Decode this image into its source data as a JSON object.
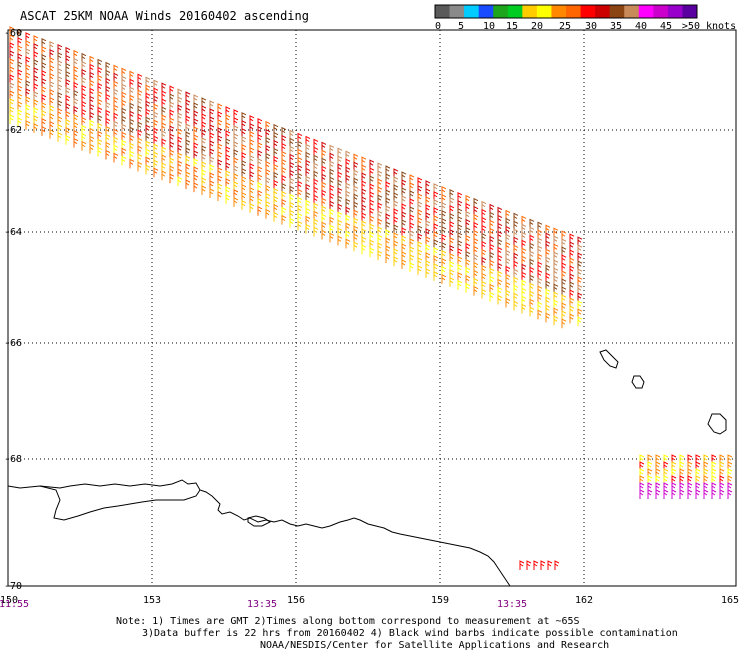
{
  "title": "ASCAT 25KM NOAA Winds 20160402 ascending",
  "color_scale": {
    "colors": [
      "#5a5a5a",
      "#8a8a8a",
      "#00ccff",
      "#1a4cff",
      "#1da51d",
      "#00cc22",
      "#ffcc00",
      "#ffff00",
      "#ff8800",
      "#ff6600",
      "#ff0000",
      "#cc0000",
      "#8b4513",
      "#c98a5a",
      "#ff00ff",
      "#cc00cc",
      "#9900cc",
      "#5a00a0"
    ],
    "labels": [
      "0",
      "5",
      "10",
      "15",
      "20",
      "25",
      "30",
      "35",
      "40",
      "45",
      ">50 knots"
    ]
  },
  "axes": {
    "lat_labels": [
      "-60",
      "-62",
      "-64",
      "-66",
      "-68",
      "-70"
    ],
    "lon_labels": [
      "150",
      "153",
      "156",
      "159",
      "162",
      "165"
    ],
    "lon_label_color": "#000000",
    "time_labels": [
      "11:55",
      "13:35",
      "13:35"
    ],
    "time_label_color": "#800080"
  },
  "notes": [
    "Note: 1) Times are GMT 2)Times along bottom correspond to measurement at ~65S",
    "3)Data buffer is 22 hrs from 20160402 4) Black wind barbs indicate possible contamination",
    "NOAA/NESDIS/Center for Satellite Applications and Research"
  ]
}
